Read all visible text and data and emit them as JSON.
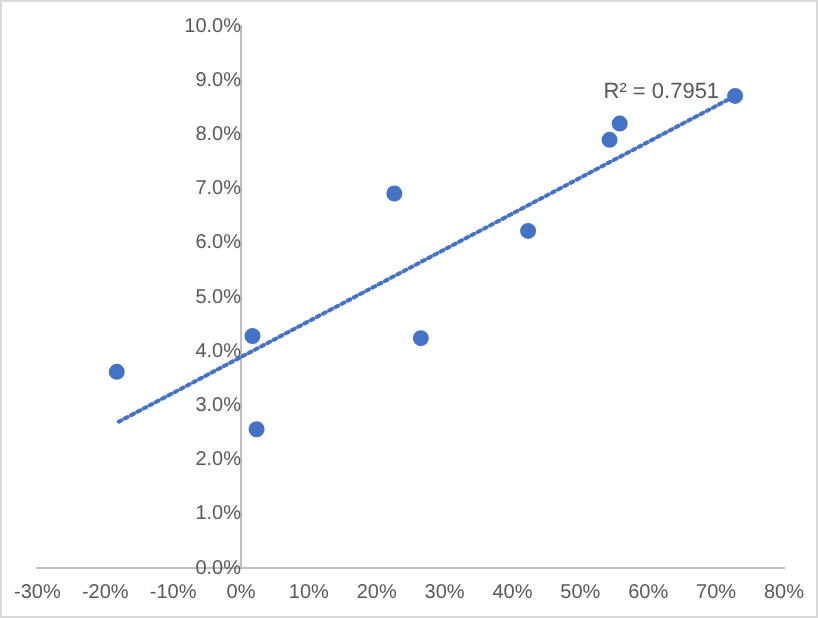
{
  "chart_data": {
    "type": "scatter",
    "marker": "circle",
    "grid": false,
    "legend": false,
    "xlim": [
      -30,
      80
    ],
    "xticks": [
      {
        "value": -30,
        "label": "-30%"
      },
      {
        "value": -20,
        "label": "-20%"
      },
      {
        "value": -10,
        "label": "-10%"
      },
      {
        "value": 0,
        "label": "0%"
      },
      {
        "value": 10,
        "label": "10%"
      },
      {
        "value": 20,
        "label": "20%"
      },
      {
        "value": 30,
        "label": "30%"
      },
      {
        "value": 40,
        "label": "40%"
      },
      {
        "value": 50,
        "label": "50%"
      },
      {
        "value": 60,
        "label": "60%"
      },
      {
        "value": 70,
        "label": "70%"
      },
      {
        "value": 80,
        "label": "80%"
      }
    ],
    "ylim": [
      0,
      10
    ],
    "yticks": [
      {
        "value": 0,
        "label": "0.0%"
      },
      {
        "value": 1,
        "label": "1.0%"
      },
      {
        "value": 2,
        "label": "2.0%"
      },
      {
        "value": 3,
        "label": "3.0%"
      },
      {
        "value": 4,
        "label": "4.0%"
      },
      {
        "value": 5,
        "label": "5.0%"
      },
      {
        "value": 6,
        "label": "6.0%"
      },
      {
        "value": 7,
        "label": "7.0%"
      },
      {
        "value": 8,
        "label": "8.0%"
      },
      {
        "value": 9,
        "label": "9.0%"
      },
      {
        "value": 10,
        "label": "10.0%"
      }
    ],
    "series": [
      {
        "color": "#4472c4",
        "x": [
          -18.3,
          1.7,
          2.3,
          22.6,
          26.5,
          42.3,
          54.3,
          55.8,
          72.8
        ],
        "values": [
          3.62,
          4.28,
          2.56,
          6.91,
          4.24,
          6.22,
          7.9,
          8.2,
          8.71
        ]
      },
      {
        "type": "line",
        "color": "#4472c4",
        "line_style": "dotted",
        "marker": "none",
        "x": [
          -18,
          72.8
        ],
        "values": [
          2.7,
          8.71
        ]
      }
    ],
    "annotations": [
      {
        "text": "R² = 0.7951",
        "x": 72.8,
        "y": 8.71
      }
    ]
  }
}
